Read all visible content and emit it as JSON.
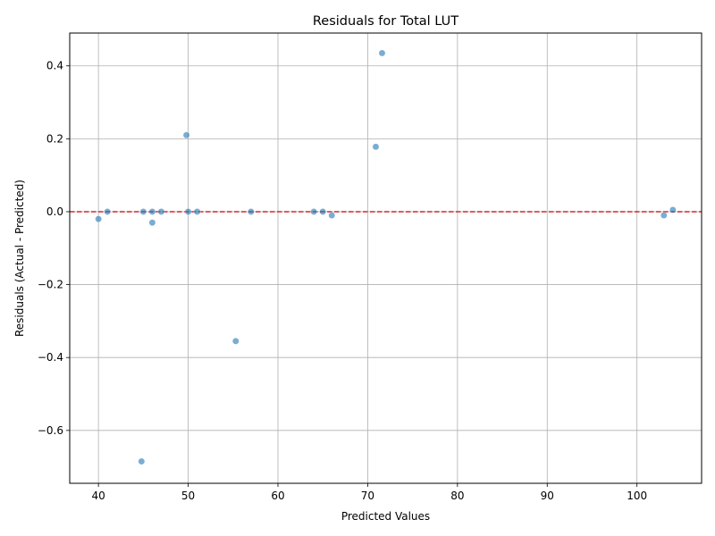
{
  "chart_data": {
    "type": "scatter",
    "title": "Residuals for Total LUT",
    "xlabel": "Predicted Values",
    "ylabel": "Residuals (Actual - Predicted)",
    "xlim": [
      36.8,
      107.2
    ],
    "ylim": [
      -0.745,
      0.49
    ],
    "xticks": [
      40,
      50,
      60,
      70,
      80,
      90,
      100
    ],
    "yticks": [
      -0.6,
      -0.4,
      -0.2,
      0.0,
      0.2,
      0.4
    ],
    "ytick_labels": [
      "−0.6",
      "−0.4",
      "−0.2",
      "0.0",
      "0.2",
      "0.4"
    ],
    "grid": true,
    "reference_line": {
      "y": 0,
      "color": "#d62728",
      "style": "dashed"
    },
    "marker_color": "#1f77b4",
    "points": [
      {
        "x": 40.0,
        "y": -0.02
      },
      {
        "x": 41.0,
        "y": 0.0
      },
      {
        "x": 44.8,
        "y": -0.685
      },
      {
        "x": 45.0,
        "y": 0.0
      },
      {
        "x": 46.0,
        "y": 0.0
      },
      {
        "x": 46.0,
        "y": -0.03
      },
      {
        "x": 47.0,
        "y": 0.0
      },
      {
        "x": 49.8,
        "y": 0.21
      },
      {
        "x": 50.0,
        "y": 0.0
      },
      {
        "x": 51.0,
        "y": 0.0
      },
      {
        "x": 55.3,
        "y": -0.355
      },
      {
        "x": 57.0,
        "y": 0.0
      },
      {
        "x": 64.0,
        "y": 0.0
      },
      {
        "x": 65.0,
        "y": 0.0
      },
      {
        "x": 66.0,
        "y": -0.01
      },
      {
        "x": 70.9,
        "y": 0.178
      },
      {
        "x": 71.6,
        "y": 0.435
      },
      {
        "x": 103.0,
        "y": -0.01
      },
      {
        "x": 104.0,
        "y": 0.005
      }
    ]
  }
}
